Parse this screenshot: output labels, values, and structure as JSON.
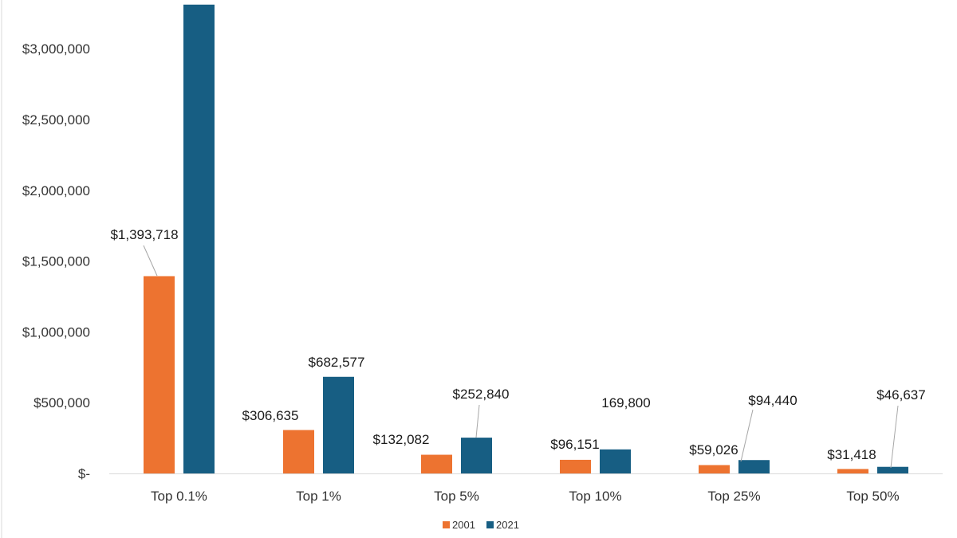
{
  "chart_data": {
    "type": "bar",
    "categories": [
      "Top 0.1%",
      "Top 1%",
      "Top 5%",
      "Top 10%",
      "Top 25%",
      "Top 50%"
    ],
    "series": [
      {
        "name": "2001",
        "color": "#ed7330",
        "values": [
          1393718,
          306635,
          132082,
          96151,
          59026,
          31418
        ],
        "labels": [
          "$1,393,718",
          "$306,635",
          "$132,082",
          "$96,151",
          "$59,026",
          "$31,418"
        ]
      },
      {
        "name": "2021",
        "color": "#175e83",
        "values": [
          3312000,
          682577,
          252840,
          169800,
          94440,
          46637
        ],
        "labels": [
          "",
          "$682,577",
          "$252,840",
          "169,800",
          "$94,440",
          "$46,637"
        ]
      }
    ],
    "y_ticks": [
      0,
      500000,
      1000000,
      1500000,
      2000000,
      2500000,
      3000000
    ],
    "y_tick_labels": [
      "$-",
      "$500,000",
      "$1,000,000",
      "$1,500,000",
      "$2,000,000",
      "$2,500,000",
      "$3,000,000"
    ],
    "ylim": [
      0,
      3350000
    ],
    "title": "",
    "xlabel": "",
    "ylabel": "",
    "legend": "bottom-center",
    "grid": false
  }
}
